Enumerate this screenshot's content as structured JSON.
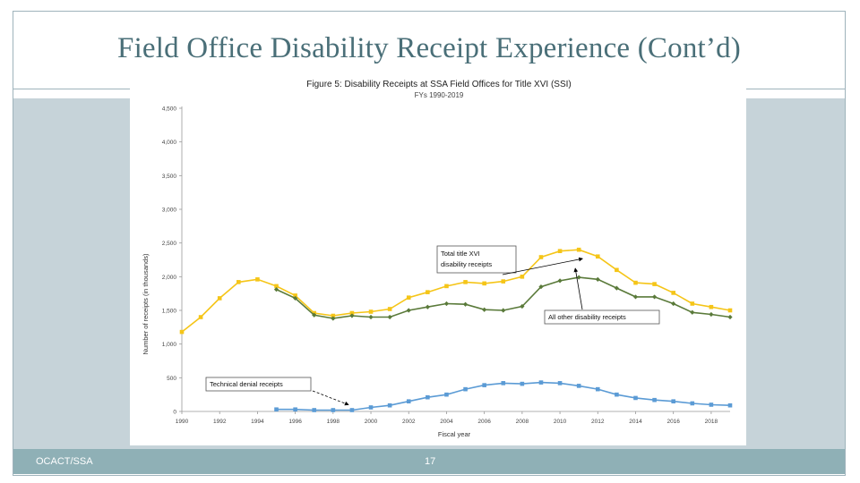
{
  "slide": {
    "title": "Field Office Disability Receipt Experience (Cont’d)",
    "footer_left": "OCACT/SSA",
    "page_number": "17"
  },
  "colors": {
    "title": "#4a6f78",
    "panel": "#c6d3d9",
    "footer": "#8fb0b6",
    "total": "#f5c518",
    "other": "#5a7a3a",
    "technical": "#5b9bd5"
  },
  "chart_data": {
    "type": "line",
    "title": "Figure 5: Disability Receipts at SSA Field Offices for Title XVI (SSI)",
    "subtitle": "FYs 1990-2019",
    "xlabel": "Fiscal year",
    "ylabel": "Number of receipts (in thousands)",
    "xlim": [
      1990,
      2019
    ],
    "ylim": [
      0,
      4500
    ],
    "x_ticks": [
      1990,
      1992,
      1994,
      1996,
      1998,
      2000,
      2002,
      2004,
      2006,
      2008,
      2010,
      2012,
      2014,
      2016,
      2018
    ],
    "y_ticks": [
      0,
      500,
      1000,
      1500,
      2000,
      2500,
      3000,
      3500,
      4000,
      4500
    ],
    "y_tick_labels": [
      "0",
      "500",
      "1,000",
      "1,500",
      "2,000",
      "2,500",
      "3,000",
      "3,500",
      "4,000",
      "4,500"
    ],
    "grid": false,
    "series": [
      {
        "name": "Total title XVI disability receipts",
        "color": "#f5c518",
        "marker": "square",
        "x": [
          1990,
          1991,
          1992,
          1993,
          1994,
          1995,
          1996,
          1997,
          1998,
          1999,
          2000,
          2001,
          2002,
          2003,
          2004,
          2005,
          2006,
          2007,
          2008,
          2009,
          2010,
          2011,
          2012,
          2013,
          2014,
          2015,
          2016,
          2017,
          2018,
          2019
        ],
        "values": [
          1180,
          1400,
          1680,
          1920,
          1960,
          1860,
          1720,
          1460,
          1420,
          1460,
          1480,
          1520,
          1690,
          1770,
          1860,
          1920,
          1900,
          1930,
          2000,
          2290,
          2380,
          2400,
          2300,
          2100,
          1910,
          1890,
          1760,
          1600,
          1550,
          1500
        ]
      },
      {
        "name": "All other disability receipts",
        "color": "#5a7a3a",
        "marker": "diamond",
        "x": [
          1995,
          1996,
          1997,
          1998,
          1999,
          2000,
          2001,
          2002,
          2003,
          2004,
          2005,
          2006,
          2007,
          2008,
          2009,
          2010,
          2011,
          2012,
          2013,
          2014,
          2015,
          2016,
          2017,
          2018,
          2019
        ],
        "values": [
          1810,
          1680,
          1430,
          1380,
          1420,
          1400,
          1400,
          1500,
          1550,
          1600,
          1590,
          1510,
          1500,
          1560,
          1850,
          1940,
          1990,
          1960,
          1830,
          1700,
          1700,
          1600,
          1470,
          1440,
          1400
        ]
      },
      {
        "name": "Technical denial receipts",
        "color": "#5b9bd5",
        "marker": "square",
        "x": [
          1995,
          1996,
          1997,
          1998,
          1999,
          2000,
          2001,
          2002,
          2003,
          2004,
          2005,
          2006,
          2007,
          2008,
          2009,
          2010,
          2011,
          2012,
          2013,
          2014,
          2015,
          2016,
          2017,
          2018,
          2019
        ],
        "values": [
          30,
          30,
          20,
          20,
          20,
          60,
          90,
          150,
          210,
          250,
          330,
          390,
          420,
          410,
          430,
          420,
          380,
          330,
          250,
          200,
          170,
          150,
          120,
          100,
          90
        ]
      }
    ],
    "annotations": [
      {
        "line1": "Total title XVI",
        "line2": "disability receipts",
        "series_index": 0,
        "point_x": 2011
      },
      {
        "line1": "All other disability receipts",
        "line2": "",
        "series_index": 1,
        "point_x": 2011
      },
      {
        "line1": "Technical denial receipts",
        "line2": "",
        "series_index": 2,
        "point_x": 1999
      }
    ]
  }
}
